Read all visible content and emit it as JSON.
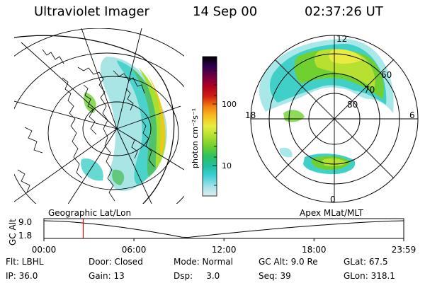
{
  "header": {
    "title": "Ultraviolet Imager",
    "date": "14 Sep 00",
    "time": "02:37:26 UT"
  },
  "colorbar": {
    "unit_label": "photon cm⁻²s⁻¹",
    "ticks": [
      "100",
      "10"
    ],
    "stops": [
      "#e0eef0",
      "#a0e0e8",
      "#40d0d8",
      "#20c0a0",
      "#30c060",
      "#70d030",
      "#b0e030",
      "#e8ec40",
      "#f8c020",
      "#f08010",
      "#d02010",
      "#b00020",
      "#700040",
      "#300050",
      "#000000"
    ]
  },
  "polar": {
    "lat_labels": [
      "60",
      "70",
      "80"
    ],
    "mlt_labels": {
      "top": "12",
      "left": "18",
      "right": "6",
      "bottom": "0"
    }
  },
  "altitude_panel": {
    "left_label": "Geographic Lat/Lon",
    "right_label": "Apex MLat/MLT",
    "y_title": "GC Alt",
    "y_ticks": [
      "9.0",
      "1.8"
    ],
    "x_ticks": [
      "00:00",
      "06:00",
      "12:00",
      "18:00",
      "23:59"
    ],
    "marker_time_hours": 2.62,
    "marker_color": "#e00000"
  },
  "footer": {
    "row1": [
      "Flt: LBHL",
      "Door: Closed",
      "Mode: Normal",
      "GC Alt: 9.0 Re",
      "GLat:  67.5"
    ],
    "row2": [
      "IP: 36.0",
      "Gain: 13",
      "Dsp:     3.0",
      "Seq: 39",
      "GLon: 318.1"
    ]
  }
}
